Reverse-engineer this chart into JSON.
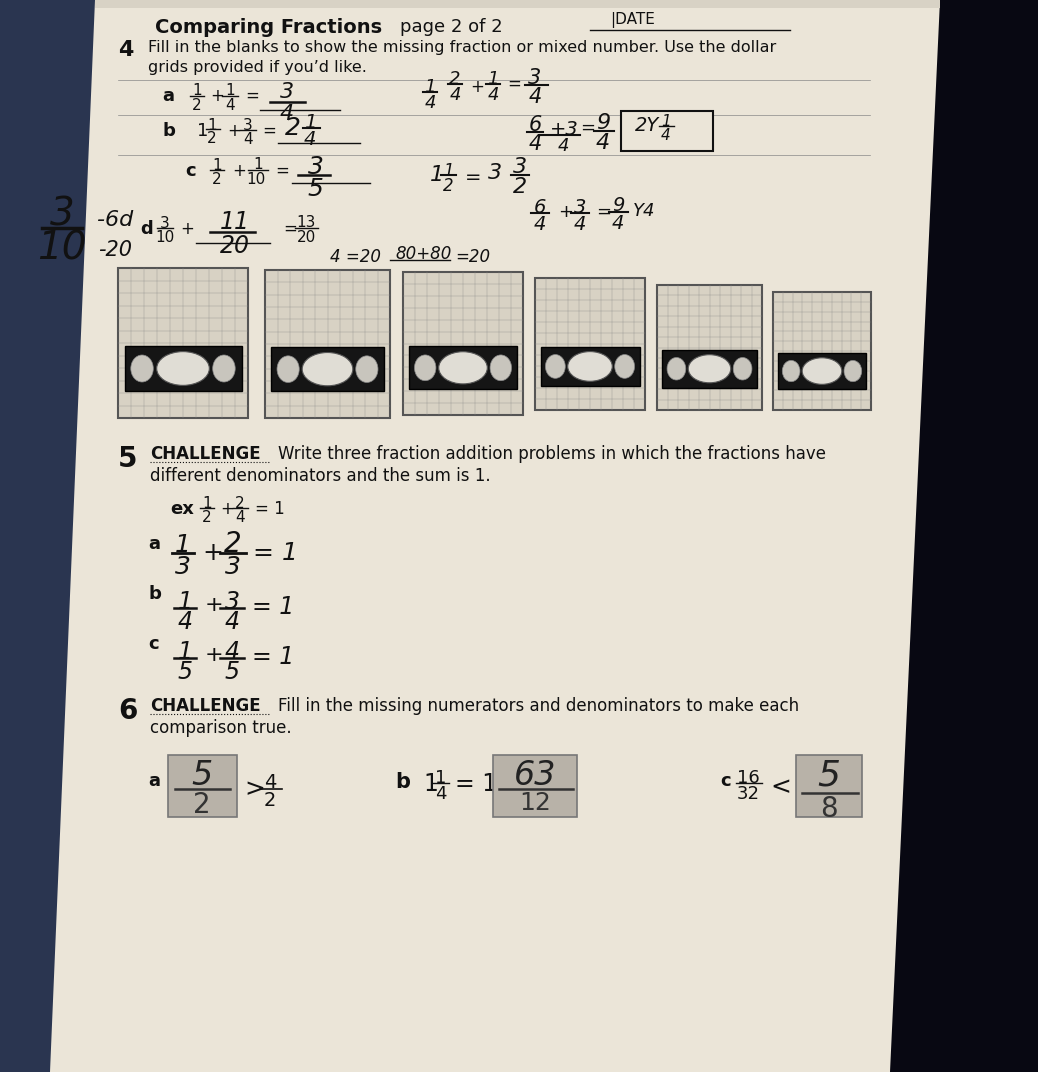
{
  "bg_color_left": "#2a3a5a",
  "bg_color_right": "#0a0a14",
  "paper_color": "#e8e2d5",
  "paper_color2": "#ddd8cc",
  "title_bold": "Comparing Fractions",
  "title_regular": "  page 2 of 2",
  "date_text": "|DATE",
  "q4_num": "4",
  "q4_line1": "Fill in the blanks to show the missing fraction or mixed number. Use the dollar",
  "q4_line2": "grids provided if you’d like.",
  "q5_num": "5",
  "q5_challenge": "CHALLENGE",
  "q5_line1": "Write three fraction addition problems in which the fractions have",
  "q5_line2": "different denominators and the sum is 1.",
  "q6_num": "6",
  "q6_challenge": "CHALLENGE",
  "q6_line1": "Fill in the missing numerators and denominators to make each",
  "q6_line2": "comparison true.",
  "hw_color": "#111111",
  "print_color": "#111111",
  "grid_color": "#999999",
  "bill_dark": "#1a1a1a",
  "shade_box_color": "#c0bab0"
}
